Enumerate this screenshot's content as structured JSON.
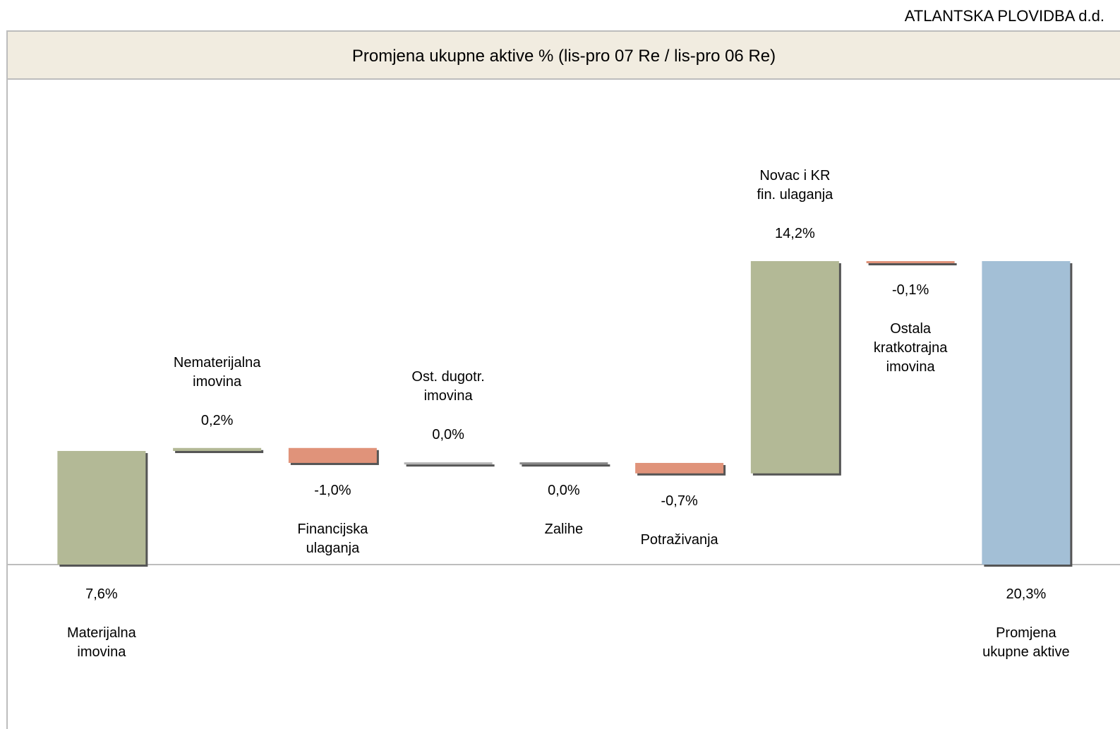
{
  "header": "ATLANTSKA PLOVIDBA d.d.",
  "chart_data": {
    "type": "waterfall",
    "title": "Promjena ukupne aktive % (lis-pro 07 Re / lis-pro 06 Re)",
    "categories": [
      "Materijalna\nimovina",
      "Nematerijalna\nimovina",
      "Financijska\nulaganja",
      "Ost. dugotr.\nimovina",
      "Zalihe",
      "Potraživanja",
      "Novac i KR\nfin. ulaganja",
      "Ostala\nkratkotrajna\nimovina"
    ],
    "values": [
      7.6,
      0.2,
      -1.0,
      0.04,
      -0.04,
      -0.7,
      14.2,
      -0.1
    ],
    "value_labels": [
      "7,6%",
      "0,2%",
      "-1,0%",
      "0,0%",
      "0,0%",
      "-0,7%",
      "14,2%",
      "-0,1%"
    ],
    "increase_color": "#b3b996",
    "decrease_color": "#e0937a",
    "total": {
      "category": "Promjena\nukupne aktive",
      "value": 20.3,
      "value_label": "20,3%",
      "color": "#a3bfd6"
    }
  }
}
